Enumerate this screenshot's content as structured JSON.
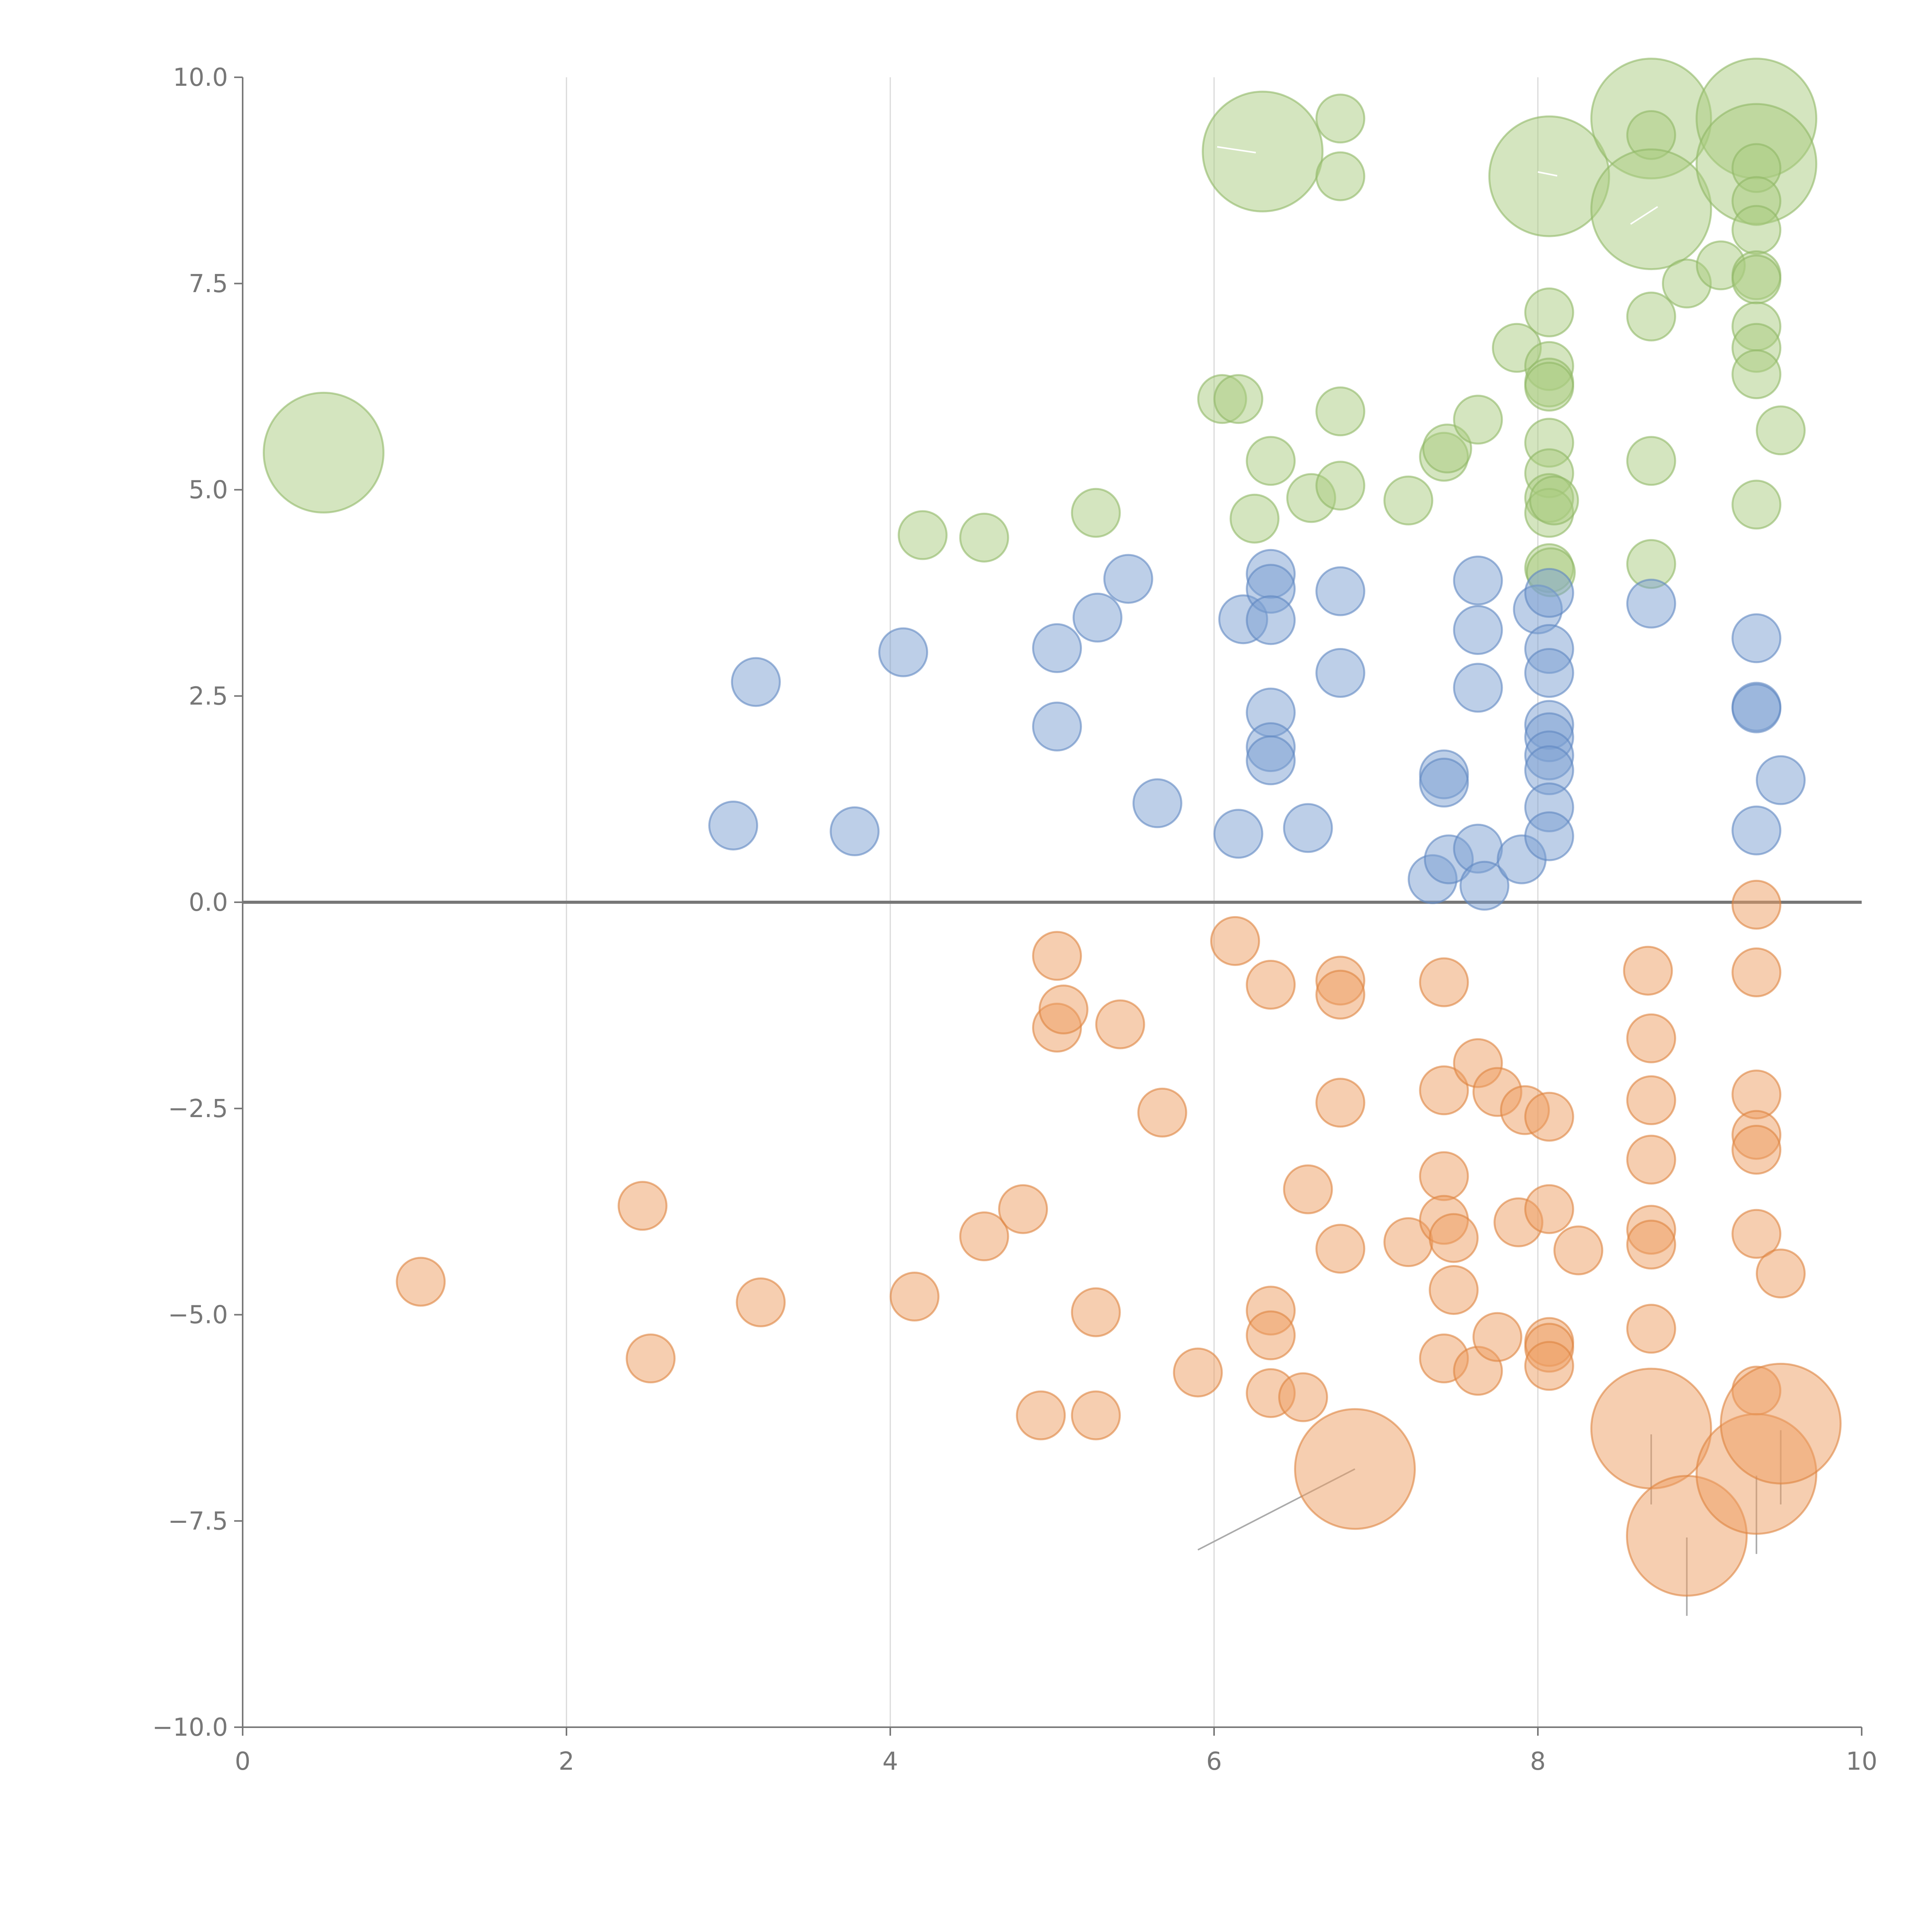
{
  "chart_data": {
    "type": "scatter",
    "variant": "bubble",
    "title": "",
    "xlabel": "",
    "ylabel": "",
    "xlim": [
      0,
      10
    ],
    "ylim": [
      -10,
      10
    ],
    "x_ticks": [
      0,
      2,
      4,
      6,
      8,
      10
    ],
    "x_tick_labels": [
      "0",
      "2",
      "4",
      "6",
      "8",
      "10"
    ],
    "y_ticks": [
      -10,
      -7.5,
      -5,
      -2.5,
      0,
      2.5,
      5,
      7.5,
      10
    ],
    "y_tick_labels": [
      "−10.0",
      "−7.5",
      "−5.0",
      "−2.5",
      "0.0",
      "2.5",
      "5.0",
      "7.5",
      "10.0"
    ],
    "vertical_grid_at": [
      2,
      4,
      6,
      8
    ],
    "reference_line_y": 0,
    "colors": {
      "green": "#a9cc80",
      "blue": "#7b9fd1",
      "orange": "#ee9e62",
      "green_stroke": "#8fb865",
      "blue_stroke": "#5f87c2",
      "orange_stroke": "#dd8440"
    },
    "series": [
      {
        "name": "green",
        "color": "green",
        "points": [
          [
            0.5,
            5.45,
            2.5
          ],
          [
            4.2,
            4.45,
            1
          ],
          [
            4.58,
            4.42,
            1
          ],
          [
            5.27,
            4.72,
            1
          ],
          [
            6.05,
            6.1,
            1
          ],
          [
            6.15,
            6.1,
            1
          ],
          [
            6.25,
            4.65,
            1
          ],
          [
            6.3,
            9.1,
            2.5
          ],
          [
            6.35,
            5.35,
            1
          ],
          [
            6.6,
            4.9,
            1
          ],
          [
            6.78,
            9.5,
            1
          ],
          [
            6.78,
            8.8,
            1
          ],
          [
            6.78,
            5.95,
            1
          ],
          [
            6.78,
            5.05,
            1
          ],
          [
            7.2,
            4.87,
            1
          ],
          [
            7.42,
            5.4,
            1
          ],
          [
            7.44,
            5.5,
            1
          ],
          [
            7.63,
            5.85,
            1
          ],
          [
            7.87,
            6.72,
            1
          ],
          [
            8.07,
            8.8,
            2.5
          ],
          [
            8.07,
            7.15,
            1
          ],
          [
            8.07,
            6.5,
            1
          ],
          [
            8.07,
            6.3,
            1
          ],
          [
            8.07,
            6.25,
            1
          ],
          [
            8.07,
            5.57,
            1
          ],
          [
            8.07,
            5.2,
            1
          ],
          [
            8.07,
            4.9,
            1
          ],
          [
            8.07,
            4.72,
            1
          ],
          [
            8.07,
            4.05,
            1
          ],
          [
            8.08,
            4.0,
            1
          ],
          [
            8.1,
            4.87,
            1
          ],
          [
            8.7,
            9.5,
            2.5
          ],
          [
            8.7,
            9.3,
            1
          ],
          [
            8.7,
            8.4,
            2.5
          ],
          [
            8.7,
            7.1,
            1
          ],
          [
            8.7,
            5.35,
            1
          ],
          [
            8.7,
            4.1,
            1
          ],
          [
            8.92,
            7.5,
            1
          ],
          [
            9.13,
            7.72,
            1
          ],
          [
            9.35,
            9.5,
            2.5
          ],
          [
            9.35,
            8.95,
            2.5
          ],
          [
            9.35,
            8.9,
            1
          ],
          [
            9.35,
            8.5,
            1
          ],
          [
            9.35,
            8.15,
            1
          ],
          [
            9.35,
            7.6,
            1
          ],
          [
            9.35,
            7.55,
            1
          ],
          [
            9.35,
            6.98,
            1
          ],
          [
            9.35,
            6.72,
            1
          ],
          [
            9.35,
            6.4,
            1
          ],
          [
            9.35,
            4.82,
            1
          ],
          [
            9.5,
            5.72,
            1
          ]
        ]
      },
      {
        "name": "blue",
        "color": "blue",
        "points": [
          [
            3.03,
            0.93,
            1
          ],
          [
            3.17,
            2.67,
            1
          ],
          [
            3.78,
            0.86,
            1
          ],
          [
            4.08,
            3.03,
            1
          ],
          [
            5.03,
            3.08,
            1
          ],
          [
            5.03,
            2.13,
            1
          ],
          [
            5.28,
            3.45,
            1
          ],
          [
            5.47,
            3.92,
            1
          ],
          [
            5.65,
            1.2,
            1
          ],
          [
            6.15,
            0.83,
            1
          ],
          [
            6.18,
            3.43,
            1
          ],
          [
            6.35,
            3.98,
            1
          ],
          [
            6.35,
            3.8,
            1
          ],
          [
            6.35,
            3.42,
            1
          ],
          [
            6.35,
            2.3,
            1
          ],
          [
            6.35,
            1.88,
            1
          ],
          [
            6.35,
            1.72,
            1
          ],
          [
            6.58,
            0.9,
            1
          ],
          [
            6.78,
            3.77,
            1
          ],
          [
            6.78,
            2.78,
            1
          ],
          [
            7.35,
            0.28,
            1
          ],
          [
            7.42,
            1.55,
            1
          ],
          [
            7.42,
            1.45,
            1
          ],
          [
            7.45,
            0.52,
            1
          ],
          [
            7.63,
            3.9,
            1
          ],
          [
            7.63,
            3.3,
            1
          ],
          [
            7.63,
            2.6,
            1
          ],
          [
            7.63,
            0.65,
            1
          ],
          [
            7.67,
            0.2,
            1
          ],
          [
            7.9,
            0.52,
            1
          ],
          [
            8.0,
            3.55,
            1
          ],
          [
            8.07,
            3.75,
            1
          ],
          [
            8.07,
            3.07,
            1
          ],
          [
            8.07,
            2.78,
            1
          ],
          [
            8.07,
            2.15,
            1
          ],
          [
            8.07,
            2.0,
            1
          ],
          [
            8.07,
            1.78,
            1
          ],
          [
            8.07,
            1.6,
            1
          ],
          [
            8.07,
            1.15,
            1
          ],
          [
            8.07,
            0.8,
            1
          ],
          [
            8.7,
            3.62,
            1
          ],
          [
            9.35,
            3.2,
            1
          ],
          [
            9.35,
            2.37,
            1
          ],
          [
            9.35,
            2.35,
            1
          ],
          [
            9.35,
            0.87,
            1
          ],
          [
            9.5,
            1.48,
            1
          ]
        ]
      },
      {
        "name": "orange",
        "color": "orange",
        "points": [
          [
            1.1,
            -4.6,
            1
          ],
          [
            2.47,
            -3.68,
            1
          ],
          [
            2.52,
            -5.53,
            1
          ],
          [
            3.2,
            -4.85,
            1
          ],
          [
            4.15,
            -4.78,
            1
          ],
          [
            4.58,
            -4.05,
            1
          ],
          [
            4.82,
            -3.72,
            1
          ],
          [
            4.93,
            -6.22,
            1
          ],
          [
            5.03,
            -0.65,
            1
          ],
          [
            5.03,
            -1.52,
            1
          ],
          [
            5.07,
            -1.3,
            1
          ],
          [
            5.27,
            -4.97,
            1
          ],
          [
            5.27,
            -6.22,
            1
          ],
          [
            5.42,
            -1.48,
            1
          ],
          [
            5.68,
            -2.55,
            1
          ],
          [
            5.9,
            -5.7,
            1
          ],
          [
            6.13,
            -0.47,
            1
          ],
          [
            6.35,
            -1.0,
            1
          ],
          [
            6.35,
            -4.95,
            1
          ],
          [
            6.35,
            -5.25,
            1
          ],
          [
            6.35,
            -5.95,
            1
          ],
          [
            6.55,
            -6.0,
            1
          ],
          [
            6.58,
            -3.48,
            1
          ],
          [
            6.78,
            -0.95,
            1
          ],
          [
            6.78,
            -1.12,
            1
          ],
          [
            6.78,
            -2.43,
            1
          ],
          [
            6.78,
            -4.2,
            1
          ],
          [
            6.87,
            -6.87,
            2.5
          ],
          [
            7.2,
            -4.12,
            1
          ],
          [
            7.42,
            -0.97,
            1
          ],
          [
            7.42,
            -2.28,
            1
          ],
          [
            7.42,
            -3.32,
            1
          ],
          [
            7.42,
            -3.85,
            1
          ],
          [
            7.42,
            -5.53,
            1
          ],
          [
            7.48,
            -4.07,
            1
          ],
          [
            7.48,
            -4.7,
            1
          ],
          [
            7.63,
            -1.95,
            1
          ],
          [
            7.63,
            -5.68,
            1
          ],
          [
            7.75,
            -2.3,
            1
          ],
          [
            7.75,
            -5.27,
            1
          ],
          [
            7.88,
            -3.88,
            1
          ],
          [
            7.92,
            -2.52,
            1
          ],
          [
            8.07,
            -2.6,
            1
          ],
          [
            8.07,
            -3.72,
            1
          ],
          [
            8.07,
            -5.33,
            1
          ],
          [
            8.07,
            -5.4,
            1
          ],
          [
            8.07,
            -5.62,
            1
          ],
          [
            8.25,
            -4.22,
            1
          ],
          [
            8.68,
            -0.83,
            1
          ],
          [
            8.7,
            -1.65,
            1
          ],
          [
            8.7,
            -2.4,
            1
          ],
          [
            8.7,
            -3.12,
            1
          ],
          [
            8.7,
            -3.97,
            1
          ],
          [
            8.7,
            -4.15,
            1
          ],
          [
            8.7,
            -5.17,
            1
          ],
          [
            8.7,
            -6.38,
            2.5
          ],
          [
            8.92,
            -7.68,
            2.5
          ],
          [
            9.35,
            -0.03,
            1
          ],
          [
            9.35,
            -0.85,
            1
          ],
          [
            9.35,
            -2.33,
            1
          ],
          [
            9.35,
            -2.82,
            1
          ],
          [
            9.35,
            -3.0,
            1
          ],
          [
            9.35,
            -4.02,
            1
          ],
          [
            9.35,
            -5.92,
            1
          ],
          [
            9.35,
            -6.93,
            2.5
          ],
          [
            9.5,
            -4.5,
            1
          ],
          [
            9.5,
            -6.32,
            2.5
          ]
        ]
      }
    ],
    "leader_lines": [
      [
        6.87,
        -6.87,
        5.9,
        -7.85
      ],
      [
        8.7,
        -6.45,
        8.7,
        -7.3
      ],
      [
        8.92,
        -7.7,
        8.92,
        -8.65
      ],
      [
        9.35,
        -6.95,
        9.35,
        -7.9
      ],
      [
        9.5,
        -6.4,
        9.5,
        -7.3
      ]
    ],
    "annotations": []
  }
}
